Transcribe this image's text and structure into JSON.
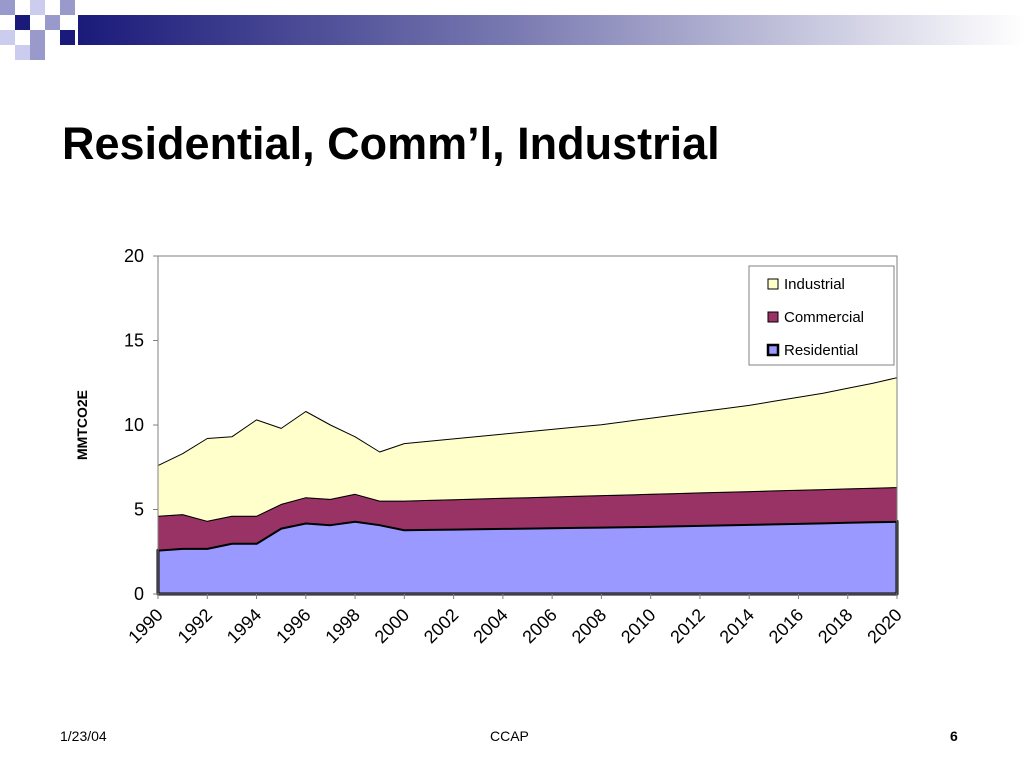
{
  "slide": {
    "title": "Residential, Comm’l, Industrial"
  },
  "footer": {
    "date": "1/23/04",
    "center": "CCAP",
    "page": "6"
  },
  "colors": {
    "industrial": "#ffffcc",
    "commercial": "#993366",
    "residential": "#9999ff",
    "decor_dark": "#1a1a7a",
    "decor_light": "#9999cc"
  },
  "chart_data": {
    "type": "area",
    "stacked": true,
    "ylabel": "MMTCO2E",
    "xlabel": "",
    "ylim": [
      0,
      20
    ],
    "yticks": [
      0,
      5,
      10,
      15,
      20
    ],
    "xtick_labels": [
      "1990",
      "1992",
      "1994",
      "1996",
      "1998",
      "2000",
      "2002",
      "2004",
      "2006",
      "2008",
      "2010",
      "2012",
      "2014",
      "2016",
      "2018",
      "2020"
    ],
    "x": [
      1990,
      1991,
      1992,
      1993,
      1994,
      1995,
      1996,
      1997,
      1998,
      1999,
      2000,
      2001,
      2002,
      2003,
      2004,
      2005,
      2006,
      2007,
      2008,
      2009,
      2010,
      2011,
      2012,
      2013,
      2014,
      2015,
      2016,
      2017,
      2018,
      2019,
      2020
    ],
    "legend_position": "top-right",
    "series": [
      {
        "name": "Residential",
        "color": "#9999ff",
        "values": [
          2.6,
          2.7,
          2.7,
          3.0,
          3.0,
          3.9,
          4.2,
          4.1,
          4.3,
          4.1,
          3.8,
          3.82,
          3.84,
          3.86,
          3.88,
          3.9,
          3.92,
          3.94,
          3.96,
          3.98,
          4.0,
          4.03,
          4.06,
          4.09,
          4.12,
          4.15,
          4.18,
          4.21,
          4.24,
          4.27,
          4.3
        ]
      },
      {
        "name": "Commercial",
        "color": "#993366",
        "values": [
          2.0,
          2.0,
          1.6,
          1.6,
          1.6,
          1.4,
          1.5,
          1.5,
          1.6,
          1.4,
          1.7,
          1.72,
          1.74,
          1.76,
          1.78,
          1.8,
          1.82,
          1.84,
          1.86,
          1.88,
          1.9,
          1.91,
          1.92,
          1.93,
          1.94,
          1.95,
          1.96,
          1.97,
          1.98,
          1.99,
          2.0
        ]
      },
      {
        "name": "Industrial",
        "color": "#ffffcc",
        "values": [
          3.0,
          3.6,
          4.9,
          4.7,
          5.7,
          4.5,
          5.1,
          4.4,
          3.4,
          2.9,
          3.4,
          3.5,
          3.6,
          3.7,
          3.8,
          3.9,
          4.0,
          4.1,
          4.2,
          4.35,
          4.5,
          4.65,
          4.8,
          4.95,
          5.1,
          5.3,
          5.5,
          5.7,
          5.95,
          6.2,
          6.5
        ]
      }
    ]
  }
}
